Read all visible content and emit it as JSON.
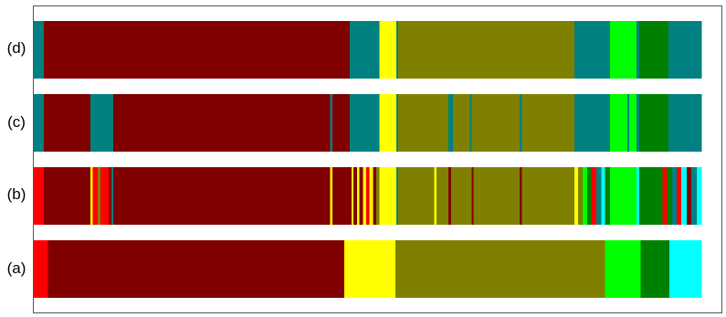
{
  "colors": {
    "dark_red": "#800000",
    "red": "#ff0000",
    "yellow": "#ffff00",
    "olive": "#808000",
    "teal": "#008080",
    "lime": "#00ff00",
    "green": "#008000",
    "cyan": "#00ffff"
  },
  "rows": [
    {
      "label": "(d)",
      "segments": [
        {
          "start": 0.0,
          "end": 0.015,
          "color": "teal"
        },
        {
          "start": 0.015,
          "end": 0.473,
          "color": "dark_red"
        },
        {
          "start": 0.473,
          "end": 0.518,
          "color": "teal"
        },
        {
          "start": 0.518,
          "end": 0.543,
          "color": "yellow"
        },
        {
          "start": 0.543,
          "end": 0.546,
          "color": "teal"
        },
        {
          "start": 0.546,
          "end": 0.81,
          "color": "olive"
        },
        {
          "start": 0.81,
          "end": 0.863,
          "color": "teal"
        },
        {
          "start": 0.863,
          "end": 0.903,
          "color": "lime"
        },
        {
          "start": 0.903,
          "end": 0.907,
          "color": "teal"
        },
        {
          "start": 0.907,
          "end": 0.951,
          "color": "green"
        },
        {
          "start": 0.951,
          "end": 1.0,
          "color": "teal"
        }
      ]
    },
    {
      "label": "(c)",
      "segments": [
        {
          "start": 0.0,
          "end": 0.015,
          "color": "teal"
        },
        {
          "start": 0.015,
          "end": 0.085,
          "color": "dark_red"
        },
        {
          "start": 0.085,
          "end": 0.119,
          "color": "teal"
        },
        {
          "start": 0.119,
          "end": 0.444,
          "color": "dark_red"
        },
        {
          "start": 0.444,
          "end": 0.447,
          "color": "teal"
        },
        {
          "start": 0.447,
          "end": 0.473,
          "color": "dark_red"
        },
        {
          "start": 0.473,
          "end": 0.518,
          "color": "teal"
        },
        {
          "start": 0.518,
          "end": 0.543,
          "color": "yellow"
        },
        {
          "start": 0.543,
          "end": 0.546,
          "color": "teal"
        },
        {
          "start": 0.546,
          "end": 0.621,
          "color": "olive"
        },
        {
          "start": 0.621,
          "end": 0.628,
          "color": "teal"
        },
        {
          "start": 0.628,
          "end": 0.653,
          "color": "olive"
        },
        {
          "start": 0.653,
          "end": 0.656,
          "color": "teal"
        },
        {
          "start": 0.656,
          "end": 0.728,
          "color": "olive"
        },
        {
          "start": 0.728,
          "end": 0.731,
          "color": "teal"
        },
        {
          "start": 0.731,
          "end": 0.81,
          "color": "olive"
        },
        {
          "start": 0.81,
          "end": 0.863,
          "color": "teal"
        },
        {
          "start": 0.863,
          "end": 0.889,
          "color": "lime"
        },
        {
          "start": 0.889,
          "end": 0.892,
          "color": "teal"
        },
        {
          "start": 0.892,
          "end": 0.903,
          "color": "lime"
        },
        {
          "start": 0.903,
          "end": 0.907,
          "color": "teal"
        },
        {
          "start": 0.907,
          "end": 0.951,
          "color": "green"
        },
        {
          "start": 0.951,
          "end": 1.0,
          "color": "teal"
        }
      ]
    },
    {
      "label": "(b)",
      "segments": [
        {
          "start": 0.0,
          "end": 0.015,
          "color": "red"
        },
        {
          "start": 0.015,
          "end": 0.085,
          "color": "dark_red"
        },
        {
          "start": 0.085,
          "end": 0.088,
          "color": "yellow"
        },
        {
          "start": 0.088,
          "end": 0.096,
          "color": "red"
        },
        {
          "start": 0.096,
          "end": 0.1,
          "color": "olive"
        },
        {
          "start": 0.1,
          "end": 0.112,
          "color": "red"
        },
        {
          "start": 0.112,
          "end": 0.116,
          "color": "dark_red"
        },
        {
          "start": 0.116,
          "end": 0.119,
          "color": "teal"
        },
        {
          "start": 0.119,
          "end": 0.444,
          "color": "dark_red"
        },
        {
          "start": 0.444,
          "end": 0.447,
          "color": "yellow"
        },
        {
          "start": 0.447,
          "end": 0.476,
          "color": "dark_red"
        },
        {
          "start": 0.476,
          "end": 0.479,
          "color": "yellow"
        },
        {
          "start": 0.479,
          "end": 0.484,
          "color": "dark_red"
        },
        {
          "start": 0.484,
          "end": 0.488,
          "color": "yellow"
        },
        {
          "start": 0.488,
          "end": 0.493,
          "color": "dark_red"
        },
        {
          "start": 0.493,
          "end": 0.498,
          "color": "yellow"
        },
        {
          "start": 0.498,
          "end": 0.503,
          "color": "red"
        },
        {
          "start": 0.503,
          "end": 0.508,
          "color": "yellow"
        },
        {
          "start": 0.508,
          "end": 0.513,
          "color": "dark_red"
        },
        {
          "start": 0.513,
          "end": 0.518,
          "color": "olive"
        },
        {
          "start": 0.518,
          "end": 0.543,
          "color": "yellow"
        },
        {
          "start": 0.543,
          "end": 0.546,
          "color": "teal"
        },
        {
          "start": 0.546,
          "end": 0.6,
          "color": "olive"
        },
        {
          "start": 0.6,
          "end": 0.603,
          "color": "yellow"
        },
        {
          "start": 0.603,
          "end": 0.621,
          "color": "olive"
        },
        {
          "start": 0.621,
          "end": 0.625,
          "color": "dark_red"
        },
        {
          "start": 0.625,
          "end": 0.656,
          "color": "olive"
        },
        {
          "start": 0.656,
          "end": 0.659,
          "color": "dark_red"
        },
        {
          "start": 0.659,
          "end": 0.728,
          "color": "olive"
        },
        {
          "start": 0.728,
          "end": 0.731,
          "color": "dark_red"
        },
        {
          "start": 0.731,
          "end": 0.81,
          "color": "olive"
        },
        {
          "start": 0.81,
          "end": 0.815,
          "color": "yellow"
        },
        {
          "start": 0.815,
          "end": 0.822,
          "color": "olive"
        },
        {
          "start": 0.822,
          "end": 0.829,
          "color": "lime"
        },
        {
          "start": 0.829,
          "end": 0.835,
          "color": "green"
        },
        {
          "start": 0.835,
          "end": 0.843,
          "color": "red"
        },
        {
          "start": 0.843,
          "end": 0.85,
          "color": "teal"
        },
        {
          "start": 0.85,
          "end": 0.856,
          "color": "cyan"
        },
        {
          "start": 0.856,
          "end": 0.863,
          "color": "green"
        },
        {
          "start": 0.863,
          "end": 0.903,
          "color": "lime"
        },
        {
          "start": 0.903,
          "end": 0.907,
          "color": "cyan"
        },
        {
          "start": 0.907,
          "end": 0.942,
          "color": "green"
        },
        {
          "start": 0.942,
          "end": 0.949,
          "color": "red"
        },
        {
          "start": 0.949,
          "end": 0.956,
          "color": "green"
        },
        {
          "start": 0.956,
          "end": 0.963,
          "color": "teal"
        },
        {
          "start": 0.963,
          "end": 0.97,
          "color": "red"
        },
        {
          "start": 0.97,
          "end": 0.978,
          "color": "cyan"
        },
        {
          "start": 0.978,
          "end": 0.985,
          "color": "dark_red"
        },
        {
          "start": 0.985,
          "end": 0.993,
          "color": "teal"
        },
        {
          "start": 0.993,
          "end": 1.0,
          "color": "cyan"
        }
      ]
    },
    {
      "label": "(a)",
      "segments": [
        {
          "start": 0.0,
          "end": 0.021,
          "color": "red"
        },
        {
          "start": 0.021,
          "end": 0.465,
          "color": "dark_red"
        },
        {
          "start": 0.465,
          "end": 0.542,
          "color": "yellow"
        },
        {
          "start": 0.542,
          "end": 0.856,
          "color": "olive"
        },
        {
          "start": 0.856,
          "end": 0.909,
          "color": "lime"
        },
        {
          "start": 0.909,
          "end": 0.952,
          "color": "green"
        },
        {
          "start": 0.952,
          "end": 1.0,
          "color": "cyan"
        }
      ]
    }
  ]
}
